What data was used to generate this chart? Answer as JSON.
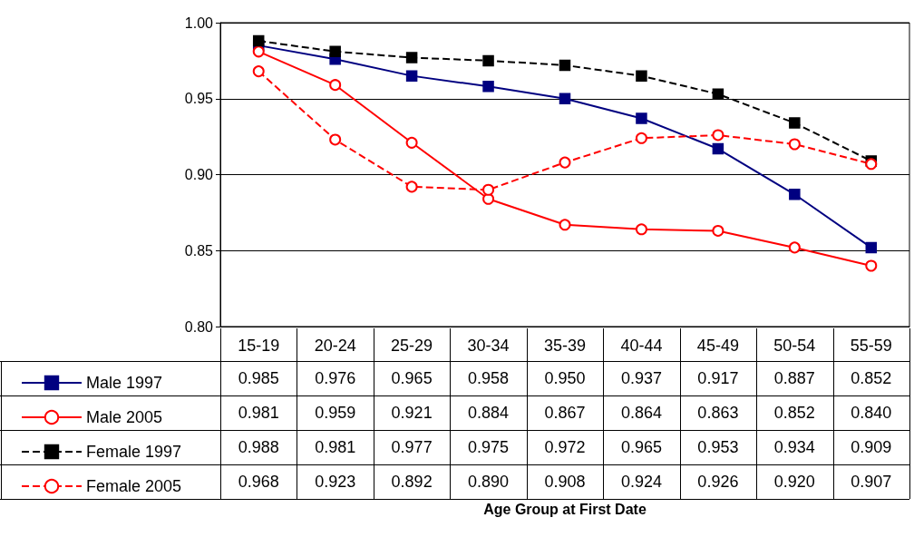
{
  "chart_data": {
    "type": "line",
    "annotations": [
      "Age Group at First Date"
    ],
    "categories": [
      "15-19",
      "20-24",
      "25-29",
      "30-34",
      "35-39",
      "40-44",
      "45-49",
      "50-54",
      "55-59"
    ],
    "series": [
      {
        "name": "Male 1997",
        "color": "#000080",
        "marker": "square",
        "line_style": "solid",
        "values": [
          0.985,
          0.976,
          0.965,
          0.958,
          0.95,
          0.937,
          0.917,
          0.887,
          0.852
        ],
        "value_labels": [
          "0.985",
          "0.976",
          "0.965",
          "0.958",
          "0.950",
          "0.937",
          "0.917",
          "0.887",
          "0.852"
        ]
      },
      {
        "name": "Male 2005",
        "color": "#ff0000",
        "marker": "circle",
        "line_style": "solid",
        "values": [
          0.981,
          0.959,
          0.921,
          0.884,
          0.867,
          0.864,
          0.863,
          0.852,
          0.84
        ],
        "value_labels": [
          "0.981",
          "0.959",
          "0.921",
          "0.884",
          "0.867",
          "0.864",
          "0.863",
          "0.852",
          "0.840"
        ]
      },
      {
        "name": "Female 1997",
        "color": "#000000",
        "marker": "square",
        "line_style": "dashed",
        "values": [
          0.988,
          0.981,
          0.977,
          0.975,
          0.972,
          0.965,
          0.953,
          0.934,
          0.909
        ],
        "value_labels": [
          "0.988",
          "0.981",
          "0.977",
          "0.975",
          "0.972",
          "0.965",
          "0.953",
          "0.934",
          "0.909"
        ]
      },
      {
        "name": "Female 2005",
        "color": "#ff0000",
        "marker": "circle",
        "line_style": "dashed",
        "values": [
          0.968,
          0.923,
          0.892,
          0.89,
          0.908,
          0.924,
          0.926,
          0.92,
          0.907
        ],
        "value_labels": [
          "0.968",
          "0.923",
          "0.892",
          "0.890",
          "0.908",
          "0.924",
          "0.926",
          "0.920",
          "0.907"
        ]
      }
    ],
    "ylim": [
      0.8,
      1.0
    ],
    "yticks": [
      {
        "value": 0.8,
        "label": "0.80"
      },
      {
        "value": 0.85,
        "label": "0.85"
      },
      {
        "value": 0.9,
        "label": "0.90"
      },
      {
        "value": 0.95,
        "label": "0.95"
      },
      {
        "value": 1.0,
        "label": "1.00"
      }
    ],
    "grid": "y",
    "legend": "bottom"
  }
}
